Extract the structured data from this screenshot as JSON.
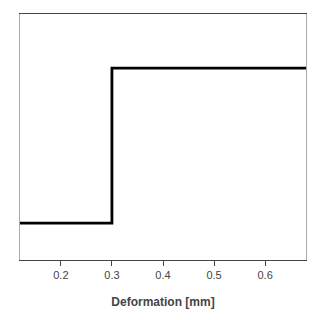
{
  "chart_data": {
    "type": "line",
    "xlabel": "Deformation [mm]",
    "x": [
      0.12,
      0.3,
      0.3,
      0.68
    ],
    "values": [
      0.15,
      0.15,
      0.78,
      0.78
    ],
    "color": "#000000",
    "xlim": [
      0.12,
      0.68
    ],
    "ylim": [
      0.0,
      1.0
    ],
    "xticks": [
      0.2,
      0.3,
      0.4,
      0.5,
      0.6
    ],
    "tick_labels": "x"
  }
}
